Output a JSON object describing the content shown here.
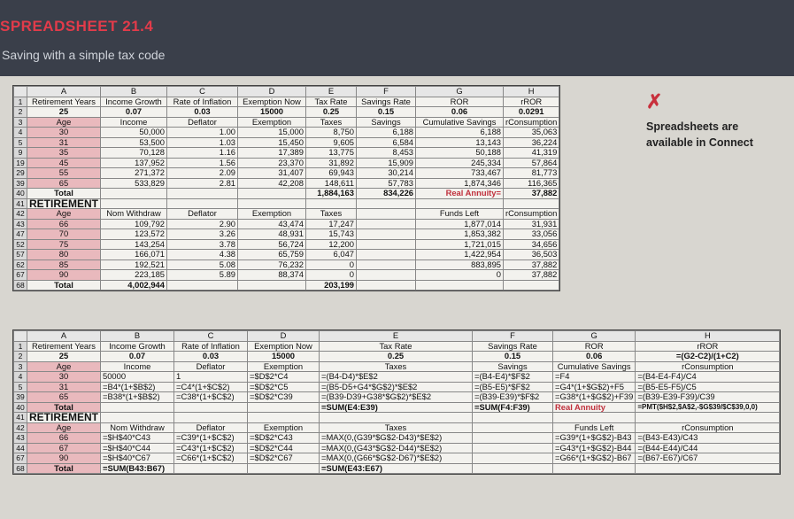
{
  "header": {
    "title": "SPREADSHEET 21.4",
    "subtitle": "Saving with a simple tax code"
  },
  "sidebar": {
    "logo_icon": "x-logo-icon",
    "note": "Spreadsheets are available in Connect"
  },
  "colors": {
    "banner": "#3a3f4a",
    "accent": "#e23b4a",
    "pink": "#e9b9bd"
  },
  "values_sheet": {
    "cols": [
      "A",
      "B",
      "C",
      "D",
      "E",
      "F",
      "G",
      "H"
    ],
    "rows": [
      {
        "rn": "1",
        "cells": [
          "Retirement Years",
          "Income Growth",
          "Rate of Inflation",
          "Exemption Now",
          "Tax Rate",
          "Savings Rate",
          "ROR",
          "rROR"
        ]
      },
      {
        "rn": "2",
        "cells": [
          "25",
          "0.07",
          "0.03",
          "15000",
          "0.25",
          "0.15",
          "0.06",
          "0.0291"
        ]
      },
      {
        "rn": "3",
        "cells": [
          "Age",
          "Income",
          "Deflator",
          "Exemption",
          "Taxes",
          "Savings",
          "Cumulative Savings",
          "rConsumption"
        ]
      },
      {
        "rn": "4",
        "cells": [
          "30",
          "50,000",
          "1.00",
          "15,000",
          "8,750",
          "6,188",
          "6,188",
          "35,063"
        ]
      },
      {
        "rn": "5",
        "cells": [
          "31",
          "53,500",
          "1.03",
          "15,450",
          "9,605",
          "6,584",
          "13,143",
          "36,224"
        ]
      },
      {
        "rn": "9",
        "cells": [
          "35",
          "70,128",
          "1.16",
          "17,389",
          "13,775",
          "8,453",
          "50,188",
          "41,319"
        ]
      },
      {
        "rn": "19",
        "cells": [
          "45",
          "137,952",
          "1.56",
          "23,370",
          "31,892",
          "15,909",
          "245,334",
          "57,864"
        ]
      },
      {
        "rn": "29",
        "cells": [
          "55",
          "271,372",
          "2.09",
          "31,407",
          "69,943",
          "30,214",
          "733,467",
          "81,773"
        ]
      },
      {
        "rn": "39",
        "cells": [
          "65",
          "533,829",
          "2.81",
          "42,208",
          "148,611",
          "57,783",
          "1,874,346",
          "116,365"
        ]
      },
      {
        "rn": "40",
        "cells": [
          "Total",
          "",
          "",
          "",
          "1,884,163",
          "834,226",
          "Real Annuity=",
          "37,882"
        ]
      },
      {
        "rn": "41",
        "cells": [
          "RETIREMENT",
          "",
          "",
          "",
          "",
          "",
          "",
          ""
        ]
      },
      {
        "rn": "42",
        "cells": [
          "Age",
          "Nom Withdraw",
          "Deflator",
          "Exemption",
          "Taxes",
          "",
          "Funds Left",
          "rConsumption"
        ]
      },
      {
        "rn": "43",
        "cells": [
          "66",
          "109,792",
          "2.90",
          "43,474",
          "17,247",
          "",
          "1,877,014",
          "31,931"
        ]
      },
      {
        "rn": "47",
        "cells": [
          "70",
          "123,572",
          "3.26",
          "48,931",
          "15,743",
          "",
          "1,853,382",
          "33,056"
        ]
      },
      {
        "rn": "52",
        "cells": [
          "75",
          "143,254",
          "3.78",
          "56,724",
          "12,200",
          "",
          "1,721,015",
          "34,656"
        ]
      },
      {
        "rn": "57",
        "cells": [
          "80",
          "166,071",
          "4.38",
          "65,759",
          "6,047",
          "",
          "1,422,954",
          "36,503"
        ]
      },
      {
        "rn": "62",
        "cells": [
          "85",
          "192,521",
          "5.08",
          "76,232",
          "0",
          "",
          "883,895",
          "37,882"
        ]
      },
      {
        "rn": "67",
        "cells": [
          "90",
          "223,185",
          "5.89",
          "88,374",
          "0",
          "",
          "0",
          "37,882"
        ]
      },
      {
        "rn": "68",
        "cells": [
          "Total",
          "4,002,944",
          "",
          "",
          "203,199",
          "",
          "",
          ""
        ]
      }
    ]
  },
  "formula_sheet": {
    "cols": [
      "A",
      "B",
      "C",
      "D",
      "E",
      "F",
      "G",
      "H"
    ],
    "rows": [
      {
        "rn": "1",
        "cells": [
          "Retirement Years",
          "Income Growth",
          "Rate of Inflation",
          "Exemption Now",
          "Tax Rate",
          "Savings Rate",
          "ROR",
          "rROR"
        ]
      },
      {
        "rn": "2",
        "cells": [
          "25",
          "0.07",
          "0.03",
          "15000",
          "0.25",
          "0.15",
          "0.06",
          "=(G2-C2)/(1+C2)"
        ]
      },
      {
        "rn": "3",
        "cells": [
          "Age",
          "Income",
          "Deflator",
          "Exemption",
          "Taxes",
          "Savings",
          "Cumulative Savings",
          "rConsumption"
        ]
      },
      {
        "rn": "4",
        "cells": [
          "30",
          "50000",
          "1",
          "=$D$2*C4",
          "=(B4-D4)*$E$2",
          "=(B4-E4)*$F$2",
          "=F4",
          "=(B4-E4-F4)/C4"
        ]
      },
      {
        "rn": "5",
        "cells": [
          "31",
          "=B4*(1+$B$2)",
          "=C4*(1+$C$2)",
          "=$D$2*C5",
          "=(B5-D5+G4*$G$2)*$E$2",
          "=(B5-E5)*$F$2",
          "=G4*(1+$G$2)+F5",
          "=(B5-E5-F5)/C5"
        ]
      },
      {
        "rn": "39",
        "cells": [
          "65",
          "=B38*(1+$B$2)",
          "=C38*(1+$C$2)",
          "=$D$2*C39",
          "=(B39-D39+G38*$G$2)*$E$2",
          "=(B39-E39)*$F$2",
          "=G38*(1+$G$2)+F39",
          "=(B39-E39-F39)/C39"
        ]
      },
      {
        "rn": "40",
        "cells": [
          "Total",
          "",
          "",
          "",
          "=SUM(E4:E39)",
          "=SUM(F4:F39)",
          "Real Annuity",
          "=PMT($H$2,$A$2,-$G$39/$C$39,0,0)"
        ]
      },
      {
        "rn": "41",
        "cells": [
          "RETIREMENT",
          "",
          "",
          "",
          "",
          "",
          "",
          ""
        ]
      },
      {
        "rn": "42",
        "cells": [
          "Age",
          "Nom Withdraw",
          "Deflator",
          "Exemption",
          "Taxes",
          "",
          "Funds Left",
          "rConsumption"
        ]
      },
      {
        "rn": "43",
        "cells": [
          "66",
          "=$H$40*C43",
          "=C39*(1+$C$2)",
          "=$D$2*C43",
          "=MAX(0,(G39*$G$2-D43)*$E$2)",
          "",
          "=G39*(1+$G$2)-B43",
          "=(B43-E43)/C43"
        ]
      },
      {
        "rn": "44",
        "cells": [
          "67",
          "=$H$40*C44",
          "=C43*(1+$C$2)",
          "=$D$2*C44",
          "=MAX(0,(G43*$G$2-D44)*$E$2)",
          "",
          "=G43*(1+$G$2)-B44",
          "=(B44-E44)/C44"
        ]
      },
      {
        "rn": "67",
        "cells": [
          "90",
          "=$H$40*C67",
          "=C66*(1+$C$2)",
          "=$D$2*C67",
          "=MAX(0,(G66*$G$2-D67)*$E$2)",
          "",
          "=G66*(1+$G$2)-B67",
          "=(B67-E67)/C67"
        ]
      },
      {
        "rn": "68",
        "cells": [
          "Total",
          "=SUM(B43:B67)",
          "",
          "",
          "=SUM(E43:E67)",
          "",
          "",
          ""
        ]
      }
    ]
  }
}
